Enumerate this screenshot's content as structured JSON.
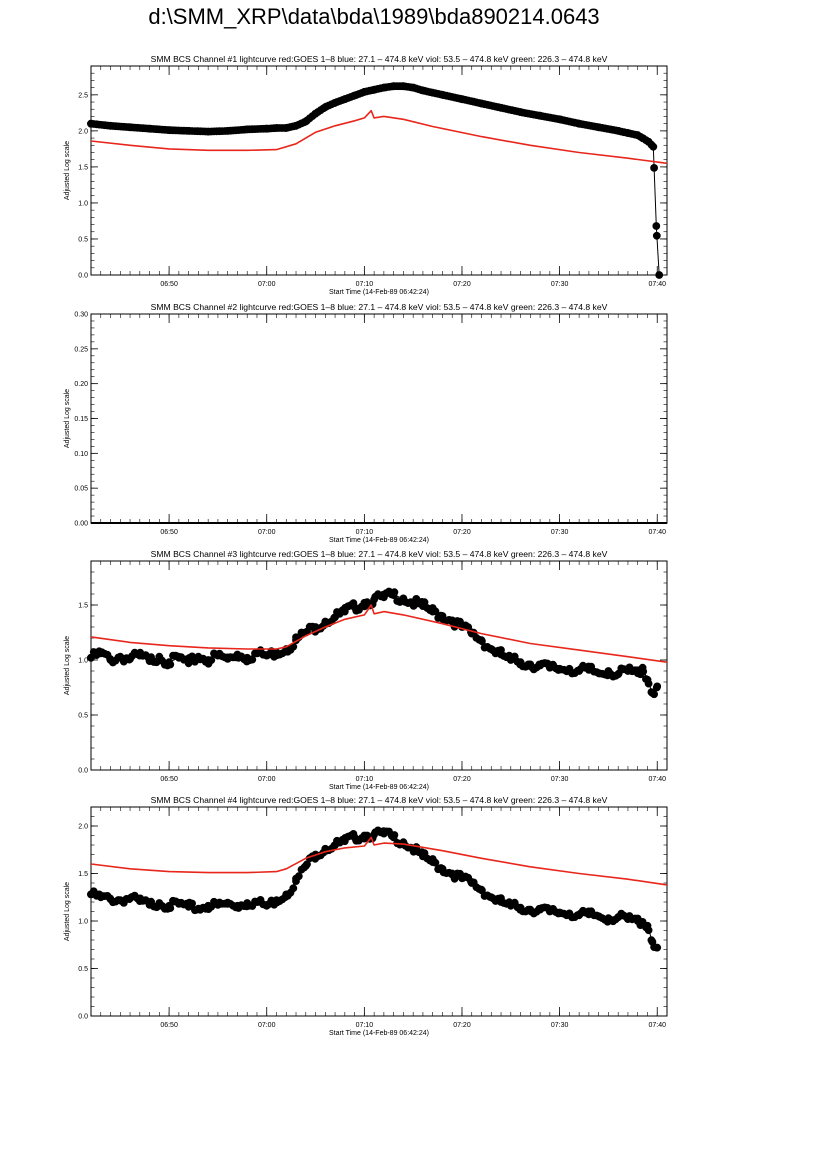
{
  "page": {
    "title": "d:\\SMM_XRP\\data\\bda\\1989\\bda890214.0643"
  },
  "colors": {
    "goes": "#e8261b",
    "bcs": "#000000",
    "axes": "#000000"
  },
  "chart_data": [
    {
      "type": "scatter",
      "title": "SMM BCS Channel #1 lightcurve  red:GOES 1–8  blue: 27.1 – 474.8 keV  viol: 53.5 – 474.8 keV  green: 226.3 – 474.8 keV",
      "xlabel": "Start Time (14-Feb-89 06:42:24)",
      "ylabel": "Adjusted Log scale",
      "xlim": [
        0,
        59
      ],
      "x_ticks": [
        8,
        18,
        28,
        38,
        48,
        58
      ],
      "x_tick_labels": [
        "06:50",
        "07:00",
        "07:10",
        "07:20",
        "07:30",
        "07:40"
      ],
      "ylim": [
        0,
        2.9
      ],
      "y_ticks": [
        0.0,
        0.5,
        1.0,
        1.5,
        2.0,
        2.5
      ],
      "y_tick_labels": [
        "0.0",
        "0.5",
        "1.0",
        "1.5",
        "2.0",
        "2.5"
      ],
      "grid": false,
      "series": [
        {
          "role": "goes",
          "color": "#e8261b",
          "marker": "line",
          "x": [
            0,
            4,
            8,
            12,
            16,
            19,
            21,
            23,
            25,
            27,
            28,
            28.7,
            29,
            30,
            32,
            35,
            40,
            45,
            50,
            55,
            59
          ],
          "y": [
            1.86,
            1.8,
            1.75,
            1.73,
            1.73,
            1.74,
            1.82,
            1.98,
            2.07,
            2.14,
            2.18,
            2.28,
            2.18,
            2.2,
            2.16,
            2.06,
            1.92,
            1.8,
            1.7,
            1.62,
            1.55
          ]
        },
        {
          "role": "bcs",
          "color": "#000000",
          "marker": "dots",
          "label_shown": false,
          "x": [
            0,
            2,
            4,
            6,
            8,
            10,
            12,
            14,
            16,
            18,
            19,
            20,
            21,
            22,
            23,
            24,
            25,
            26,
            27,
            28,
            29,
            30,
            31,
            32,
            33,
            34,
            36,
            38,
            40,
            42,
            44,
            46,
            48,
            50,
            52,
            54,
            55,
            56,
            56.5,
            57.1,
            57.6,
            57.9,
            58.2
          ],
          "y": [
            2.1,
            2.07,
            2.05,
            2.03,
            2.01,
            2.0,
            1.99,
            2.0,
            2.02,
            2.03,
            2.04,
            2.04,
            2.07,
            2.13,
            2.24,
            2.33,
            2.39,
            2.44,
            2.49,
            2.54,
            2.57,
            2.6,
            2.62,
            2.62,
            2.6,
            2.56,
            2.5,
            2.44,
            2.38,
            2.32,
            2.26,
            2.21,
            2.16,
            2.1,
            2.05,
            2.0,
            1.97,
            1.94,
            1.9,
            1.85,
            1.78,
            0.68,
            0.0
          ]
        }
      ]
    },
    {
      "type": "scatter",
      "title": "SMM BCS Channel #2 lightcurve  red:GOES 1–8  blue: 27.1 – 474.8 keV  viol: 53.5 – 474.8 keV  green: 226.3 – 474.8 keV",
      "xlabel": "Start Time (14-Feb-89 06:42:24)",
      "ylabel": "Adjusted Log scale",
      "xlim": [
        0,
        59
      ],
      "x_ticks": [
        8,
        18,
        28,
        38,
        48,
        58
      ],
      "x_tick_labels": [
        "06:50",
        "07:00",
        "07:10",
        "07:20",
        "07:30",
        "07:40"
      ],
      "ylim": [
        0,
        0.3
      ],
      "y_ticks": [
        0.0,
        0.05,
        0.1,
        0.15,
        0.2,
        0.25,
        0.3
      ],
      "y_tick_labels": [
        "0.00",
        "0.05",
        "0.10",
        "0.15",
        "0.20",
        "0.25",
        "0.30"
      ],
      "grid": false,
      "series": [
        {
          "role": "bcs",
          "color": "#000000",
          "marker": "line",
          "x": [
            0,
            59
          ],
          "y": [
            0,
            0
          ]
        }
      ]
    },
    {
      "type": "scatter",
      "title": "SMM BCS Channel #3 lightcurve  red:GOES 1–8  blue: 27.1 – 474.8 keV  viol: 53.5 – 474.8 keV  green: 226.3 – 474.8 keV",
      "xlabel": "Start Time (14-Feb-89 06:42:24)",
      "ylabel": "Adjusted Log scale",
      "xlim": [
        0,
        59
      ],
      "x_ticks": [
        8,
        18,
        28,
        38,
        48,
        58
      ],
      "x_tick_labels": [
        "06:50",
        "07:00",
        "07:10",
        "07:20",
        "07:30",
        "07:40"
      ],
      "ylim": [
        0,
        1.9
      ],
      "y_ticks": [
        0.0,
        0.5,
        1.0,
        1.5
      ],
      "y_tick_labels": [
        "0.0",
        "0.5",
        "1.0",
        "1.5"
      ],
      "grid": false,
      "series": [
        {
          "role": "goes",
          "color": "#e8261b",
          "marker": "line",
          "x": [
            0,
            4,
            8,
            12,
            16,
            19,
            20,
            22,
            24,
            26,
            28,
            28.7,
            29,
            30,
            32,
            36,
            40,
            45,
            50,
            55,
            59
          ],
          "y": [
            1.21,
            1.16,
            1.13,
            1.11,
            1.1,
            1.1,
            1.12,
            1.22,
            1.3,
            1.37,
            1.41,
            1.5,
            1.42,
            1.44,
            1.41,
            1.33,
            1.24,
            1.15,
            1.09,
            1.03,
            0.98
          ]
        },
        {
          "role": "bcs",
          "color": "#000000",
          "marker": "dots",
          "x": [
            0,
            1,
            2,
            3,
            4,
            5,
            6,
            7,
            8,
            9,
            10,
            11,
            12,
            13,
            14,
            15,
            16,
            17,
            18,
            19,
            20,
            21,
            22,
            23,
            24,
            25,
            26,
            27,
            28,
            29,
            30,
            31,
            32,
            33,
            34,
            35,
            36,
            37,
            38,
            39,
            40,
            41,
            42,
            43,
            44,
            45,
            46,
            47,
            48,
            49,
            50,
            51,
            52,
            53,
            54,
            55,
            56,
            56.5,
            57,
            57.5,
            58
          ],
          "y": [
            1.02,
            1.06,
            1.0,
            1.03,
            1.01,
            1.04,
            0.99,
            1.03,
            0.98,
            1.02,
            0.97,
            1.03,
            1.0,
            1.04,
            1.01,
            1.05,
            1.02,
            1.06,
            1.04,
            1.07,
            1.1,
            1.18,
            1.25,
            1.3,
            1.35,
            1.39,
            1.44,
            1.48,
            1.52,
            1.55,
            1.57,
            1.59,
            1.56,
            1.52,
            1.49,
            1.44,
            1.4,
            1.36,
            1.3,
            1.24,
            1.18,
            1.1,
            1.05,
            1.0,
            0.98,
            0.96,
            0.95,
            0.93,
            0.92,
            0.92,
            0.9,
            0.91,
            0.88,
            0.9,
            0.87,
            0.9,
            0.88,
            0.93,
            0.82,
            0.7,
            0.76
          ]
        }
      ]
    },
    {
      "type": "scatter",
      "title": "SMM BCS Channel #4 lightcurve  red:GOES 1–8  blue: 27.1 – 474.8 keV  viol: 53.5 – 474.8 keV  green: 226.3 – 474.8 keV",
      "xlabel": "Start Time (14-Feb-89 06:42:24)",
      "ylabel": "Adjusted Log scale",
      "xlim": [
        0,
        59
      ],
      "x_ticks": [
        8,
        18,
        28,
        38,
        48,
        58
      ],
      "x_tick_labels": [
        "06:50",
        "07:00",
        "07:10",
        "07:20",
        "07:30",
        "07:40"
      ],
      "ylim": [
        0,
        2.2
      ],
      "y_ticks": [
        0.0,
        0.5,
        1.0,
        1.5,
        2.0
      ],
      "y_tick_labels": [
        "0.0",
        "0.5",
        "1.0",
        "1.5",
        "2.0"
      ],
      "grid": false,
      "series": [
        {
          "role": "goes",
          "color": "#e8261b",
          "marker": "line",
          "x": [
            0,
            4,
            8,
            12,
            16,
            19,
            20,
            22,
            24,
            26,
            28,
            28.7,
            29,
            30,
            32,
            36,
            40,
            45,
            50,
            55,
            59
          ],
          "y": [
            1.6,
            1.55,
            1.52,
            1.51,
            1.51,
            1.52,
            1.55,
            1.66,
            1.73,
            1.77,
            1.79,
            1.88,
            1.8,
            1.82,
            1.81,
            1.74,
            1.66,
            1.57,
            1.5,
            1.44,
            1.38
          ]
        },
        {
          "role": "bcs",
          "color": "#000000",
          "marker": "dots",
          "x": [
            0,
            1,
            2,
            3,
            4,
            5,
            6,
            7,
            8,
            9,
            10,
            11,
            12,
            13,
            14,
            15,
            16,
            17,
            18,
            19,
            20,
            21,
            22,
            23,
            24,
            25,
            26,
            27,
            28,
            29,
            30,
            31,
            32,
            33,
            34,
            35,
            36,
            37,
            38,
            39,
            40,
            41,
            42,
            43,
            44,
            45,
            46,
            47,
            48,
            49,
            50,
            51,
            52,
            53,
            54,
            55,
            56,
            56.5,
            57,
            57.5,
            58
          ],
          "y": [
            1.28,
            1.25,
            1.23,
            1.22,
            1.24,
            1.21,
            1.17,
            1.19,
            1.16,
            1.18,
            1.15,
            1.13,
            1.16,
            1.17,
            1.18,
            1.16,
            1.19,
            1.2,
            1.16,
            1.22,
            1.28,
            1.42,
            1.58,
            1.7,
            1.76,
            1.8,
            1.84,
            1.88,
            1.9,
            1.91,
            1.92,
            1.88,
            1.83,
            1.76,
            1.68,
            1.62,
            1.55,
            1.5,
            1.45,
            1.4,
            1.33,
            1.25,
            1.2,
            1.16,
            1.14,
            1.12,
            1.12,
            1.1,
            1.09,
            1.08,
            1.06,
            1.07,
            1.05,
            1.03,
            1.04,
            1.02,
            1.0,
            0.99,
            0.95,
            0.78,
            0.72
          ]
        }
      ]
    }
  ]
}
